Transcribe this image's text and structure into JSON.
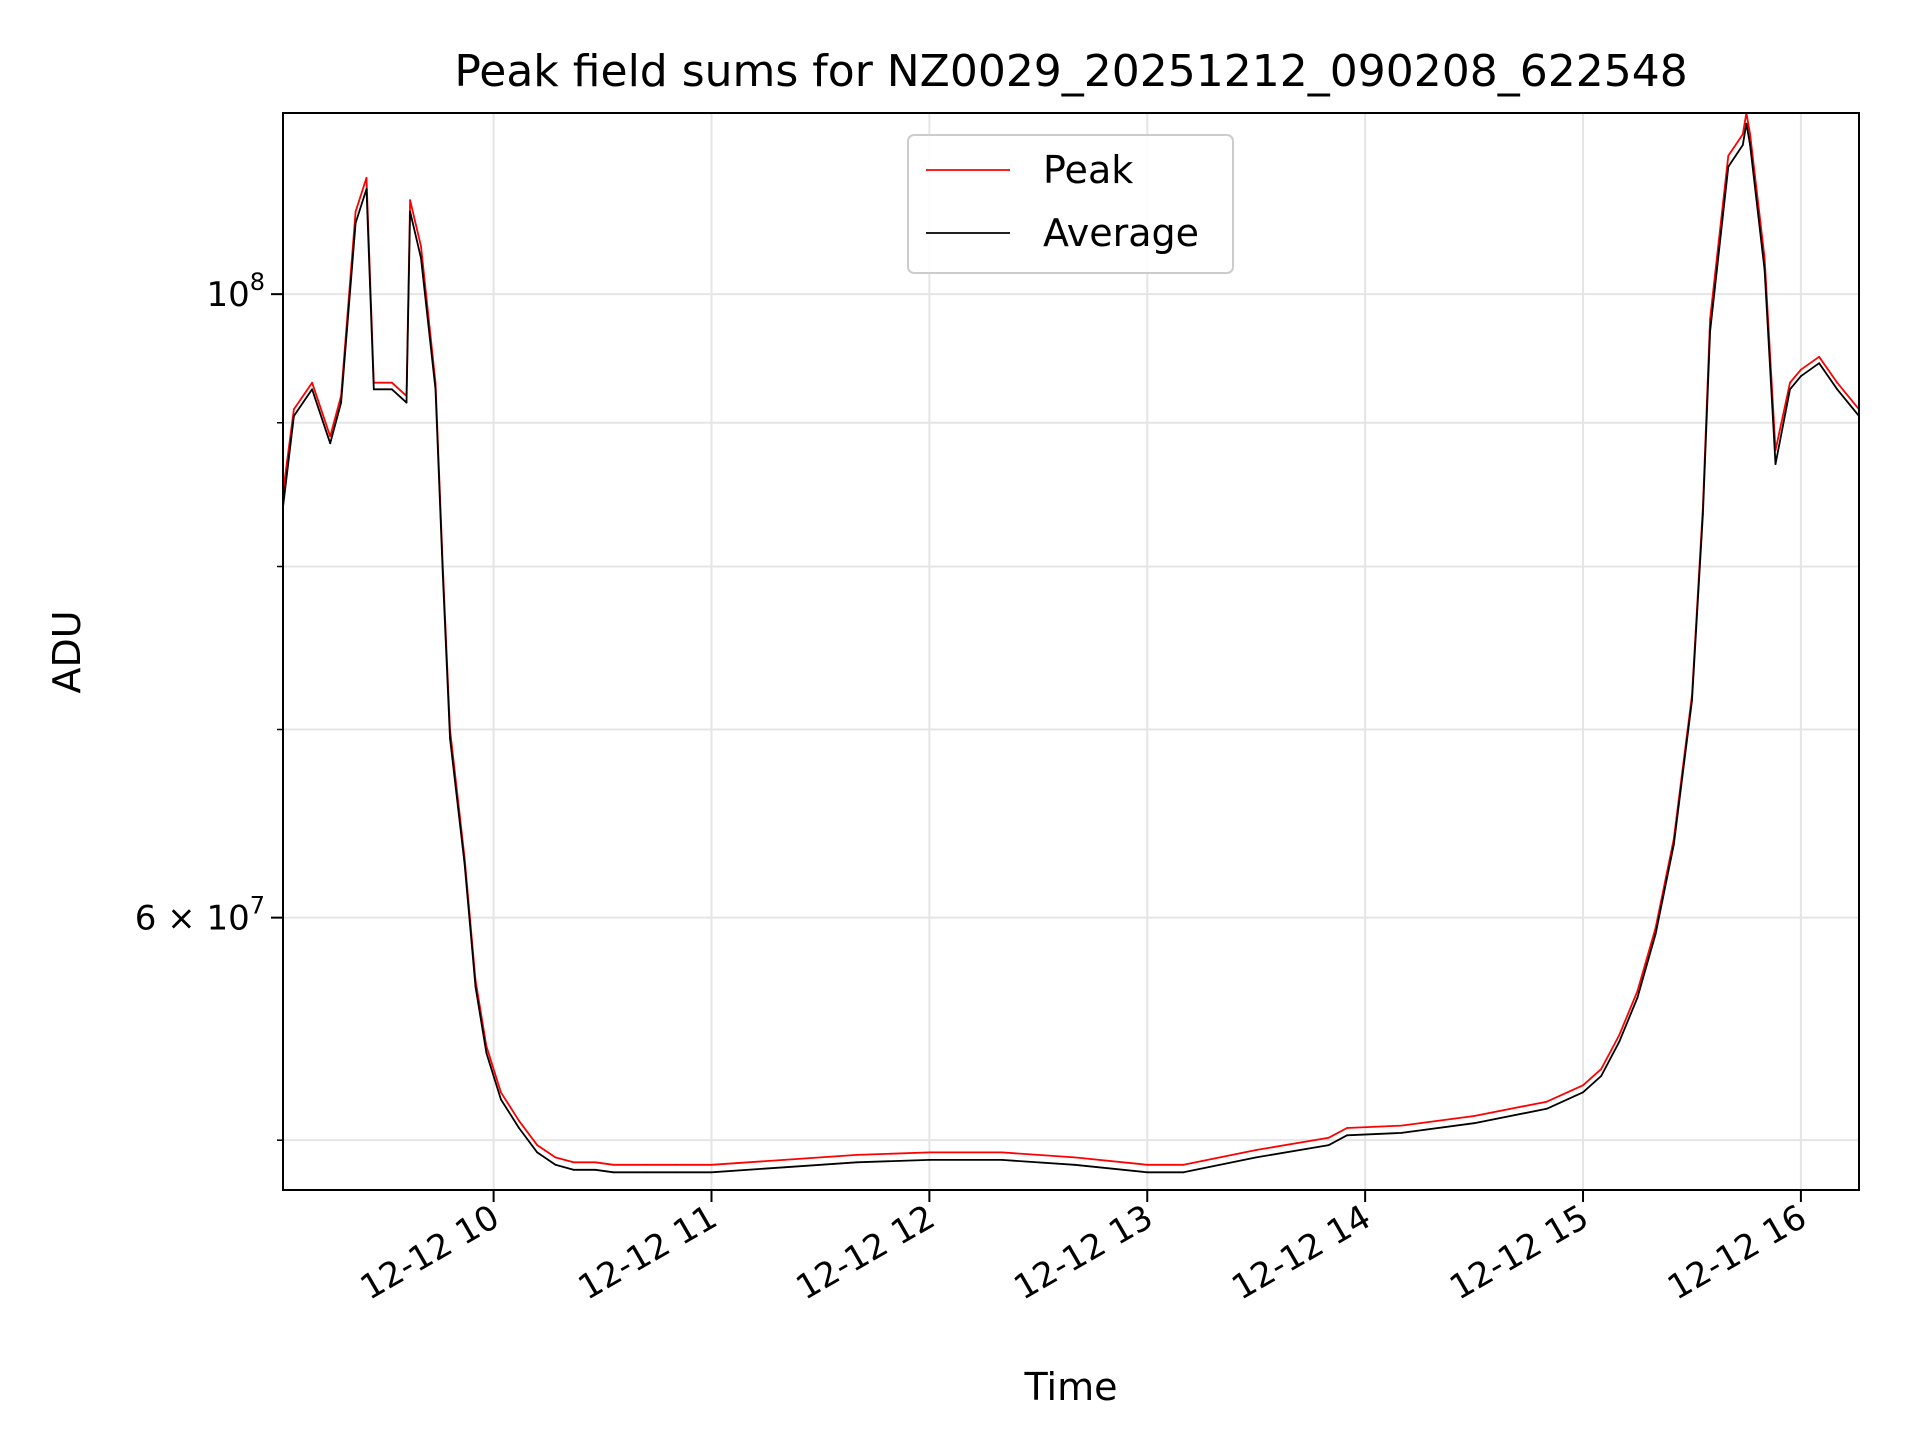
{
  "chart_data": {
    "type": "line",
    "title": "Peak field sums for NZ0029_20251212_090208_622548",
    "xlabel": "Time",
    "ylabel": "ADU",
    "yscale": "log",
    "xlim": [
      "2025-12-12 09:02",
      "2025-12-12 16:16"
    ],
    "ylim": [
      48000000,
      116000000
    ],
    "grid": true,
    "legend": "top-center",
    "x_ticks": [
      "12-12 10",
      "12-12 11",
      "12-12 12",
      "12-12 13",
      "12-12 14",
      "12-12 15",
      "12-12 16"
    ],
    "y_ticks": [
      {
        "value": 100000000,
        "base": "10",
        "exp": "8",
        "prefix": ""
      },
      {
        "value": 60000000,
        "base": "10",
        "exp": "7",
        "prefix": "6 × "
      }
    ],
    "y_minor_ticks": [
      50000000,
      70000000,
      80000000,
      90000000
    ],
    "series": [
      {
        "name": "Peak",
        "color": "#ff0000",
        "x": [
          "2025-12-12 09:02",
          "2025-12-12 09:05",
          "2025-12-12 09:10",
          "2025-12-12 09:15",
          "2025-12-12 09:18",
          "2025-12-12 09:22",
          "2025-12-12 09:25",
          "2025-12-12 09:27",
          "2025-12-12 09:32",
          "2025-12-12 09:36",
          "2025-12-12 09:37",
          "2025-12-12 09:40",
          "2025-12-12 09:44",
          "2025-12-12 09:46",
          "2025-12-12 09:48",
          "2025-12-12 09:52",
          "2025-12-12 09:55",
          "2025-12-12 09:58",
          "2025-12-12 10:02",
          "2025-12-12 10:07",
          "2025-12-12 10:12",
          "2025-12-12 10:17",
          "2025-12-12 10:22",
          "2025-12-12 10:28",
          "2025-12-12 10:33",
          "2025-12-12 10:42",
          "2025-12-12 10:50",
          "2025-12-12 11:00",
          "2025-12-12 11:20",
          "2025-12-12 11:40",
          "2025-12-12 12:00",
          "2025-12-12 12:20",
          "2025-12-12 12:40",
          "2025-12-12 13:00",
          "2025-12-12 13:10",
          "2025-12-12 13:30",
          "2025-12-12 13:50",
          "2025-12-12 13:55",
          "2025-12-12 14:10",
          "2025-12-12 14:30",
          "2025-12-12 14:50",
          "2025-12-12 15:00",
          "2025-12-12 15:05",
          "2025-12-12 15:10",
          "2025-12-12 15:15",
          "2025-12-12 15:20",
          "2025-12-12 15:25",
          "2025-12-12 15:30",
          "2025-12-12 15:33",
          "2025-12-12 15:35",
          "2025-12-12 15:40",
          "2025-12-12 15:44",
          "2025-12-12 15:45",
          "2025-12-12 15:46",
          "2025-12-12 15:50",
          "2025-12-12 15:53",
          "2025-12-12 15:57",
          "2025-12-12 16:00",
          "2025-12-12 16:05",
          "2025-12-12 16:10",
          "2025-12-12 16:16"
        ],
        "values": [
          85000000,
          91000000,
          93000000,
          89000000,
          92000000,
          107000000,
          110000000,
          93000000,
          93000000,
          92000000,
          108000000,
          104000000,
          93000000,
          80000000,
          70000000,
          63000000,
          57000000,
          54000000,
          52000000,
          50800000,
          49800000,
          49300000,
          49100000,
          49100000,
          49000000,
          49000000,
          49000000,
          49000000,
          49200000,
          49400000,
          49500000,
          49500000,
          49300000,
          49000000,
          49000000,
          49600000,
          50100000,
          50500000,
          50600000,
          51000000,
          51600000,
          52300000,
          53000000,
          54500000,
          56500000,
          59500000,
          64000000,
          72000000,
          84000000,
          98000000,
          112000000,
          114000000,
          116000000,
          114000000,
          103000000,
          88000000,
          93000000,
          94000000,
          95000000,
          93000000,
          91000000
        ]
      },
      {
        "name": "Average",
        "color": "#000000",
        "x": [
          "2025-12-12 09:02",
          "2025-12-12 09:05",
          "2025-12-12 09:10",
          "2025-12-12 09:15",
          "2025-12-12 09:18",
          "2025-12-12 09:22",
          "2025-12-12 09:25",
          "2025-12-12 09:27",
          "2025-12-12 09:32",
          "2025-12-12 09:36",
          "2025-12-12 09:37",
          "2025-12-12 09:40",
          "2025-12-12 09:44",
          "2025-12-12 09:46",
          "2025-12-12 09:48",
          "2025-12-12 09:52",
          "2025-12-12 09:55",
          "2025-12-12 09:58",
          "2025-12-12 10:02",
          "2025-12-12 10:07",
          "2025-12-12 10:12",
          "2025-12-12 10:17",
          "2025-12-12 10:22",
          "2025-12-12 10:28",
          "2025-12-12 10:33",
          "2025-12-12 10:42",
          "2025-12-12 10:50",
          "2025-12-12 11:00",
          "2025-12-12 11:20",
          "2025-12-12 11:40",
          "2025-12-12 12:00",
          "2025-12-12 12:20",
          "2025-12-12 12:40",
          "2025-12-12 13:00",
          "2025-12-12 13:10",
          "2025-12-12 13:30",
          "2025-12-12 13:50",
          "2025-12-12 13:55",
          "2025-12-12 14:10",
          "2025-12-12 14:30",
          "2025-12-12 14:50",
          "2025-12-12 15:00",
          "2025-12-12 15:05",
          "2025-12-12 15:10",
          "2025-12-12 15:15",
          "2025-12-12 15:20",
          "2025-12-12 15:25",
          "2025-12-12 15:30",
          "2025-12-12 15:33",
          "2025-12-12 15:35",
          "2025-12-12 15:40",
          "2025-12-12 15:44",
          "2025-12-12 15:45",
          "2025-12-12 15:46",
          "2025-12-12 15:50",
          "2025-12-12 15:53",
          "2025-12-12 15:57",
          "2025-12-12 16:00",
          "2025-12-12 16:05",
          "2025-12-12 16:10",
          "2025-12-12 16:16"
        ],
        "values": [
          84000000,
          90500000,
          92500000,
          88500000,
          91500000,
          106000000,
          109000000,
          92500000,
          92500000,
          91500000,
          107000000,
          103000000,
          92500000,
          79500000,
          69500000,
          62700000,
          56700000,
          53700000,
          51700000,
          50500000,
          49500000,
          49000000,
          48800000,
          48800000,
          48700000,
          48700000,
          48700000,
          48700000,
          48900000,
          49100000,
          49200000,
          49200000,
          49000000,
          48700000,
          48700000,
          49300000,
          49800000,
          50200000,
          50300000,
          50700000,
          51300000,
          52000000,
          52700000,
          54200000,
          56200000,
          59200000,
          63700000,
          71700000,
          83500000,
          97000000,
          111000000,
          113000000,
          115000000,
          113000000,
          102000000,
          87000000,
          92500000,
          93500000,
          94500000,
          92500000,
          90500000
        ]
      }
    ]
  }
}
